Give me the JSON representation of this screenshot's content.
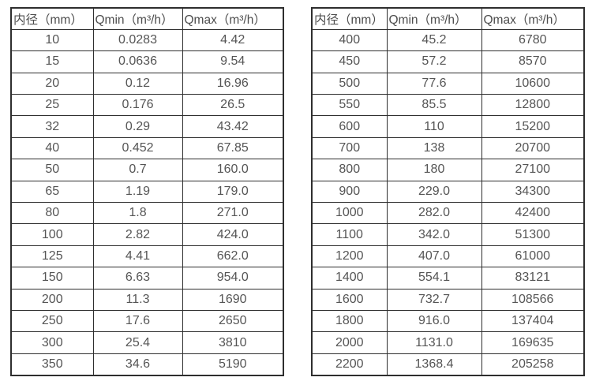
{
  "left_table": {
    "headers": [
      "内径（mm）",
      "Qmin（m³/h）",
      "Qmax（m³/h）"
    ],
    "rows": [
      [
        "10",
        "0.0283",
        "4.42"
      ],
      [
        "15",
        "0.0636",
        "9.54"
      ],
      [
        "20",
        "0.12",
        "16.96"
      ],
      [
        "25",
        "0.176",
        "26.5"
      ],
      [
        "32",
        "0.29",
        "43.42"
      ],
      [
        "40",
        "0.452",
        "67.85"
      ],
      [
        "50",
        "0.7",
        "160.0"
      ],
      [
        "65",
        "1.19",
        "179.0"
      ],
      [
        "80",
        "1.8",
        "271.0"
      ],
      [
        "100",
        "2.82",
        "424.0"
      ],
      [
        "125",
        "4.41",
        "662.0"
      ],
      [
        "150",
        "6.63",
        "954.0"
      ],
      [
        "200",
        "11.3",
        "1690"
      ],
      [
        "250",
        "17.6",
        "2650"
      ],
      [
        "300",
        "25.4",
        "3810"
      ],
      [
        "350",
        "34.6",
        "5190"
      ]
    ]
  },
  "right_table": {
    "headers": [
      "内径（mm）",
      "Qmin（m³/h）",
      "Qmax（m³/h）"
    ],
    "rows": [
      [
        "400",
        "45.2",
        "6780"
      ],
      [
        "450",
        "57.2",
        "8570"
      ],
      [
        "500",
        "77.6",
        "10600"
      ],
      [
        "550",
        "85.5",
        "12800"
      ],
      [
        "600",
        "110",
        "15200"
      ],
      [
        "700",
        "138",
        "20700"
      ],
      [
        "800",
        "180",
        "27100"
      ],
      [
        "900",
        "229.0",
        "34300"
      ],
      [
        "1000",
        "282.0",
        "42400"
      ],
      [
        "1100",
        "342.0",
        "51300"
      ],
      [
        "1200",
        "407.0",
        "61000"
      ],
      [
        "1400",
        "554.1",
        "83121"
      ],
      [
        "1600",
        "732.7",
        "108566"
      ],
      [
        "1800",
        "916.0",
        "137404"
      ],
      [
        "2000",
        "1131.0",
        "169635"
      ],
      [
        "2200",
        "1368.4",
        "205258"
      ]
    ]
  },
  "colors": {
    "border": "#2e2e2e",
    "text": "#555555",
    "background": "#ffffff"
  }
}
